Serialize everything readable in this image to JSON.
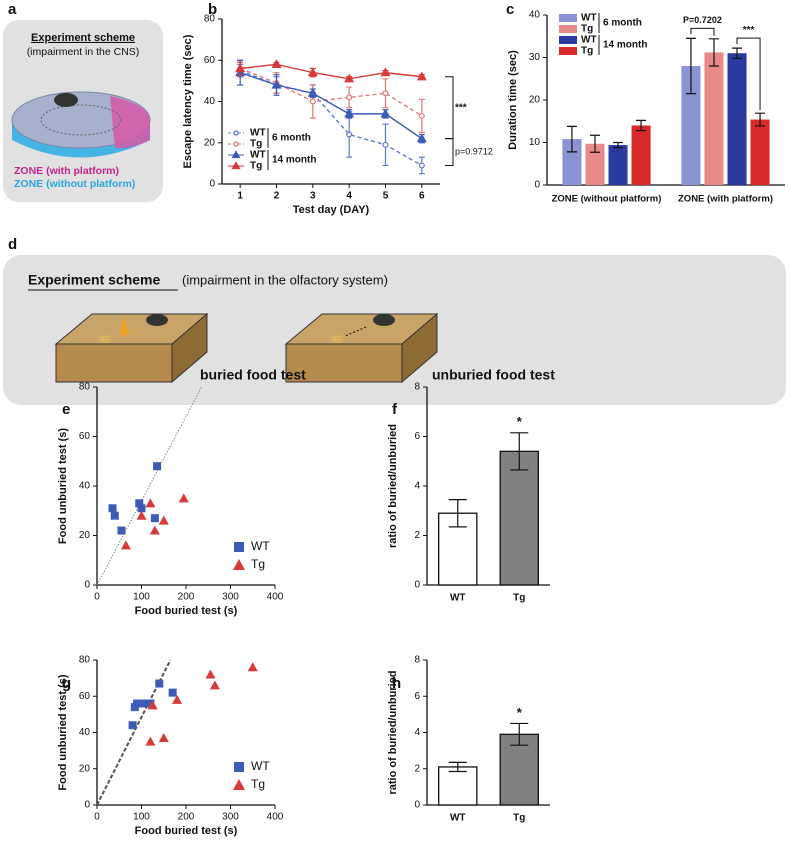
{
  "panel_labels": [
    "a",
    "b",
    "c",
    "d",
    "e",
    "f",
    "g",
    "h"
  ],
  "scheme_cns": {
    "title": "Experiment scheme",
    "subtitle": "(impairment in the CNS)",
    "zone_with": "ZONE (with platform)",
    "zone_without": "ZONE (without platform)"
  },
  "scheme_olfactory": {
    "title": "Experiment scheme",
    "subtitle": "(impairment in the olfactory system)",
    "test_buried": "buried food test",
    "test_unburied": "unburied food test"
  },
  "chart_data": [
    {
      "type": "line",
      "x_label": "Test day (DAY)",
      "y_label": "Escape latency time (sec)",
      "x": [
        1,
        2,
        3,
        4,
        5,
        6
      ],
      "xlim": [
        0.5,
        6.5
      ],
      "xticks": [
        1,
        2,
        3,
        4,
        5,
        6
      ],
      "ylim": [
        0,
        80
      ],
      "yticks": [
        0,
        20,
        40,
        60,
        80
      ],
      "legend_groups": [
        "6 month",
        "14 month"
      ],
      "series": [
        {
          "name": "WT",
          "color": "#5a78c8",
          "marker": "circle",
          "dashed": true,
          "values": [
            55,
            48,
            44,
            24,
            19,
            9
          ],
          "errors": [
            3,
            4,
            4,
            11,
            10,
            4
          ]
        },
        {
          "name": "Tg",
          "color": "#e07878",
          "marker": "circle",
          "dashed": true,
          "values": [
            56,
            49,
            40,
            42,
            44,
            33
          ],
          "errors": [
            4,
            5,
            8,
            5,
            7,
            8
          ]
        },
        {
          "name": "WT",
          "color": "#3b5bb5",
          "marker": "triangle",
          "dashed": false,
          "values": [
            54,
            48,
            44,
            34,
            34,
            22
          ],
          "errors": [
            6,
            5,
            2,
            2,
            2,
            2
          ]
        },
        {
          "name": "Tg",
          "color": "#d63a3a",
          "marker": "triangle",
          "dashed": false,
          "values": [
            56,
            58,
            54,
            51,
            54,
            52
          ],
          "errors": [
            3,
            1,
            2,
            1,
            1,
            1
          ]
        }
      ],
      "annotations": [
        "***",
        "p=0.9712"
      ]
    },
    {
      "type": "bar",
      "y_label": "Duration time (sec)",
      "categories": [
        "ZONE (without platform)",
        "ZONE (with platform)"
      ],
      "ylim": [
        0,
        40
      ],
      "yticks": [
        0,
        10,
        20,
        30,
        40
      ],
      "legend_groups": [
        "6 month",
        "14 month"
      ],
      "series": [
        {
          "name": "WT",
          "color": "#8a93d4",
          "values": [
            10.8,
            28
          ],
          "errors": [
            3,
            6.5
          ]
        },
        {
          "name": "Tg",
          "color": "#e88a8a",
          "values": [
            9.7,
            31.2
          ],
          "errors": [
            2,
            3.2
          ]
        },
        {
          "name": "WT",
          "color": "#2a3a9e",
          "values": [
            9.4,
            31
          ],
          "errors": [
            0.6,
            1.2
          ]
        },
        {
          "name": "Tg",
          "color": "#d82a2a",
          "values": [
            14,
            15.4
          ],
          "errors": [
            1.2,
            1.5
          ]
        }
      ],
      "annotations": [
        "P=0.7202",
        "***"
      ]
    },
    {
      "type": "scatter",
      "x_label": "Food buried test (s)",
      "y_label": "Food unburied test (s)",
      "xlim": [
        0,
        400
      ],
      "xticks": [
        0,
        100,
        200,
        300,
        400
      ],
      "ylim": [
        0,
        80
      ],
      "yticks": [
        0,
        20,
        40,
        60,
        80
      ],
      "fit_line": {
        "x": [
          0,
          235
        ],
        "y": [
          0,
          80
        ],
        "dashed": false
      },
      "series": [
        {
          "name": "WT",
          "color": "#3b5bb5",
          "marker": "square",
          "x": [
            35,
            40,
            55,
            95,
            100,
            130,
            135
          ],
          "y": [
            31,
            28,
            22,
            33,
            31,
            27,
            48
          ]
        },
        {
          "name": "Tg",
          "color": "#d63a3a",
          "marker": "triangle",
          "x": [
            65,
            100,
            120,
            130,
            150,
            195
          ],
          "y": [
            16,
            28,
            33,
            22,
            26,
            35
          ]
        }
      ]
    },
    {
      "type": "bar",
      "y_label": "ratio of buried/unburied",
      "categories": [
        "WT",
        "Tg"
      ],
      "ylim": [
        0,
        8
      ],
      "yticks": [
        0,
        2,
        4,
        6,
        8
      ],
      "values": [
        2.9,
        5.4
      ],
      "errors": [
        0.55,
        0.75
      ],
      "colors": [
        "#ffffff",
        "#808080"
      ],
      "annotations": [
        "*"
      ]
    },
    {
      "type": "scatter",
      "x_label": "Food buried test (s)",
      "y_label": "Food unburied test (s)",
      "xlim": [
        0,
        400
      ],
      "xticks": [
        0,
        100,
        200,
        300,
        400
      ],
      "ylim": [
        0,
        80
      ],
      "yticks": [
        0,
        20,
        40,
        60,
        80
      ],
      "fit_line": {
        "x": [
          0,
          165
        ],
        "y": [
          0,
          80
        ],
        "dashed": true
      },
      "series": [
        {
          "name": "WT",
          "color": "#3b5bb5",
          "marker": "square",
          "x": [
            80,
            85,
            90,
            100,
            110,
            120,
            140,
            170
          ],
          "y": [
            44,
            54,
            56,
            56,
            56,
            56,
            67,
            62
          ]
        },
        {
          "name": "Tg",
          "color": "#d63a3a",
          "marker": "triangle",
          "x": [
            120,
            125,
            150,
            180,
            255,
            265,
            350
          ],
          "y": [
            35,
            55,
            37,
            58,
            72,
            66,
            76
          ]
        }
      ]
    },
    {
      "type": "bar",
      "y_label": "ratio of buried/unburied",
      "categories": [
        "WT",
        "Tg"
      ],
      "ylim": [
        0,
        8
      ],
      "yticks": [
        0,
        2,
        4,
        6,
        8
      ],
      "values": [
        2.1,
        3.9
      ],
      "errors": [
        0.25,
        0.6
      ],
      "colors": [
        "#ffffff",
        "#808080"
      ],
      "annotations": [
        "*"
      ]
    }
  ]
}
